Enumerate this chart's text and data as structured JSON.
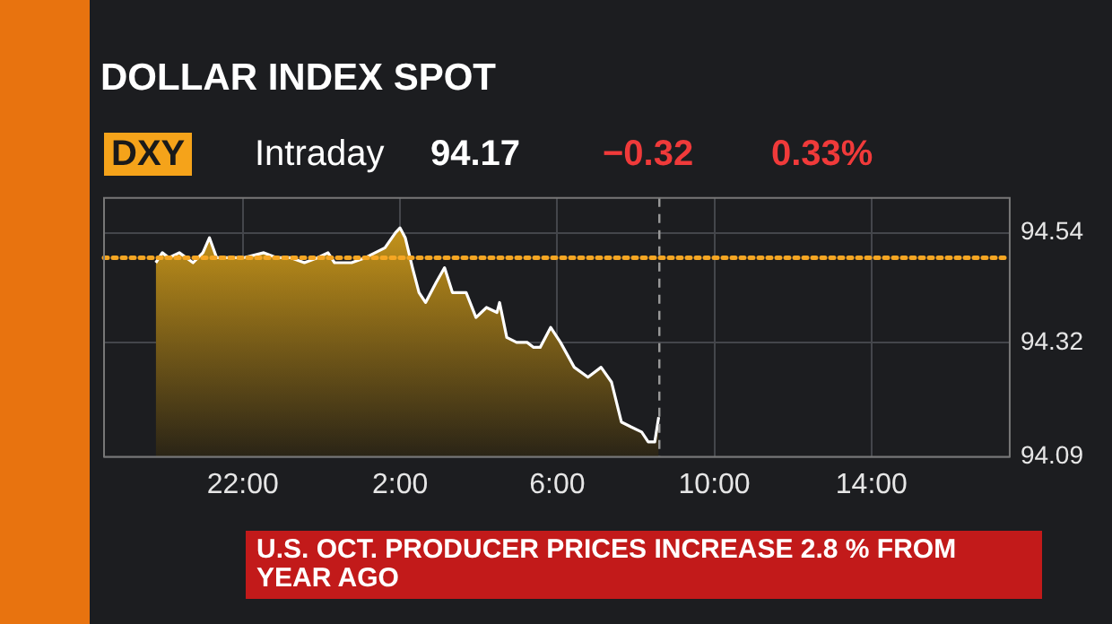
{
  "chart_data": {
    "type": "area",
    "title": "DOLLAR INDEX SPOT",
    "annotations": [
      "DXY",
      "Intraday",
      "94.17",
      "−0.32",
      "0.33%",
      "U.S. OCT. PRODUCER PRICES INCREASE 2.8 % FROM YEAR AGO"
    ],
    "series": [
      {
        "color": "#d9a21b",
        "x": [
          "--11-13T19:47",
          "--11-13T19:57",
          "--11-13T20:07",
          "--11-13T20:23",
          "--11-13T20:44",
          "--11-13T20:59",
          "--11-13T21:09",
          "--11-13T21:20",
          "--11-13T21:40",
          "--11-13T22:01",
          "--11-13T22:32",
          "--11-13T22:52",
          "--11-13T23:13",
          "--11-13T23:34",
          "--11-13T23:54",
          "--11-14T00:10",
          "--11-14T00:20",
          "--11-14T00:46",
          "--11-14T01:07",
          "--11-14T01:22",
          "--11-14T01:37",
          "--11-14T01:53",
          "--11-14T02:00",
          "--11-14T02:08",
          "--11-14T02:19",
          "--11-14T02:29",
          "--11-14T02:39",
          "--11-14T02:55",
          "--11-14T03:08",
          "--11-14T03:20",
          "--11-14T03:31",
          "--11-14T03:41",
          "--11-14T03:56",
          "--11-14T04:12",
          "--11-14T04:28",
          "--11-14T04:32",
          "--11-14T04:43",
          "--11-14T04:58",
          "--11-14T05:14",
          "--11-14T05:24",
          "--11-14T05:34",
          "--11-14T05:50",
          "--11-14T06:05",
          "--11-14T06:26",
          "--11-14T06:47",
          "--11-14T07:07",
          "--11-14T07:23",
          "--11-14T07:38",
          "--11-14T07:53",
          "--11-14T08:09",
          "--11-14T08:19",
          "--11-14T08:29",
          "--11-14T08:35"
        ],
        "values": [
          94.48,
          94.5,
          94.49,
          94.5,
          94.48,
          94.5,
          94.53,
          94.49,
          94.49,
          94.49,
          94.5,
          94.49,
          94.49,
          94.48,
          94.49,
          94.5,
          94.48,
          94.48,
          94.49,
          94.5,
          94.51,
          94.54,
          94.55,
          94.53,
          94.47,
          94.42,
          94.4,
          94.44,
          94.47,
          94.42,
          94.42,
          94.42,
          94.37,
          94.39,
          94.38,
          94.4,
          94.33,
          94.32,
          94.32,
          94.31,
          94.31,
          94.35,
          94.32,
          94.27,
          94.25,
          94.27,
          94.24,
          94.16,
          94.15,
          94.14,
          94.12,
          94.12,
          94.17
        ]
      }
    ],
    "xlim": [
      "--11-13T18:28",
      "--11-14T17:31"
    ],
    "xticks": [
      {
        "value": "--11-13T22:00",
        "label": "22:00"
      },
      {
        "value": "--11-14T02:00",
        "label": "2:00"
      },
      {
        "value": "--11-14T06:00",
        "label": "6:00"
      },
      {
        "value": "--11-14T10:00",
        "label": "10:00"
      },
      {
        "value": "--11-14T14:00",
        "label": "14:00"
      }
    ],
    "ylim": [
      94.09,
      94.61
    ],
    "yticks": [
      94.09,
      94.32,
      94.54
    ],
    "ref_lines": [
      {
        "axis": "y",
        "value": 94.49,
        "color": "#f5a623",
        "line_style": "dotted"
      },
      {
        "axis": "x",
        "value": "--11-14T08:36",
        "color": "#9a9a9a",
        "line_style": "dashed"
      }
    ],
    "grid": true,
    "legend": false
  }
}
